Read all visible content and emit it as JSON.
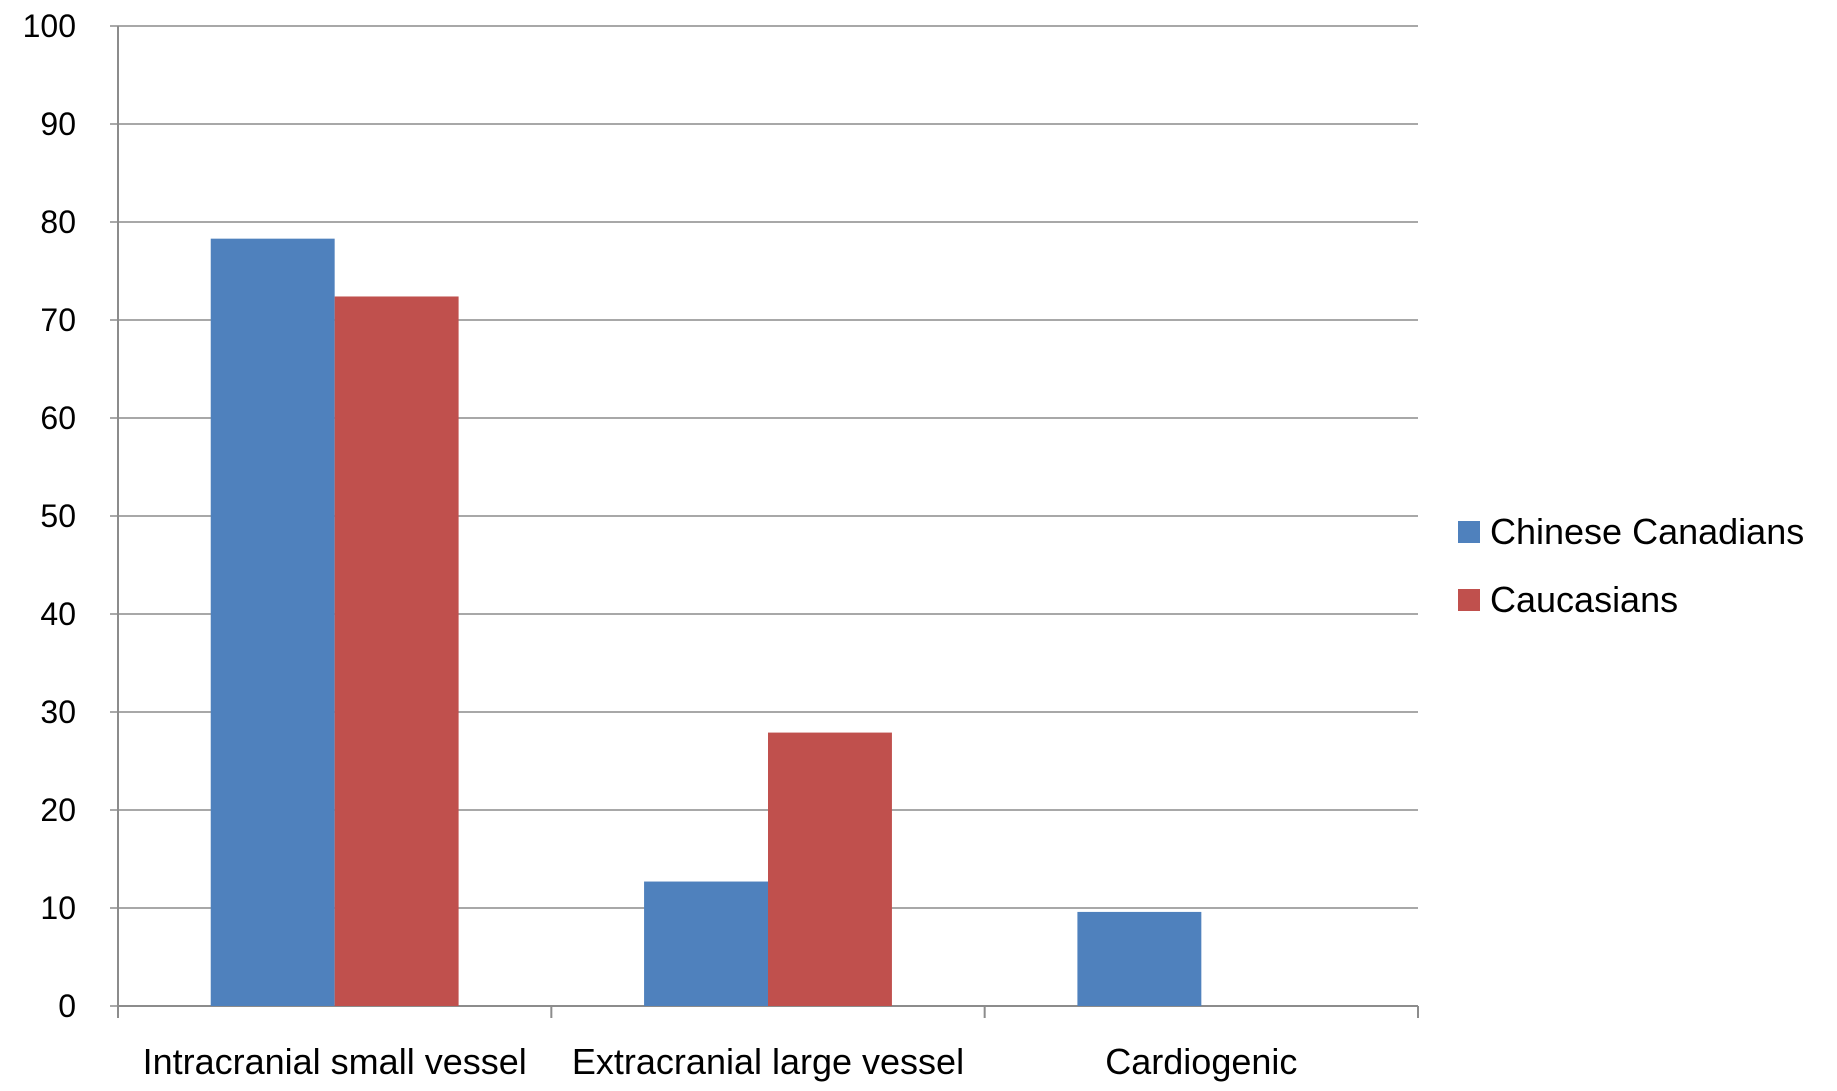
{
  "chart_data": {
    "type": "bar",
    "title": "",
    "xlabel": "",
    "ylabel": "",
    "categories": [
      "Intracranial small vessel",
      "Extracranial large vessel",
      "Cardiogenic"
    ],
    "series": [
      {
        "name": "Chinese Canadians",
        "color": "#4F81BD",
        "values": [
          78.3,
          12.7,
          9.6
        ]
      },
      {
        "name": "Caucasians",
        "color": "#C0504D",
        "values": [
          72.4,
          27.9,
          0
        ]
      }
    ],
    "ylim": [
      0,
      100
    ],
    "yticks": [
      "0",
      "10",
      "20",
      "30",
      "40",
      "50",
      "60",
      "70",
      "80",
      "90",
      "100"
    ],
    "grid": true,
    "legend_position": "right"
  }
}
